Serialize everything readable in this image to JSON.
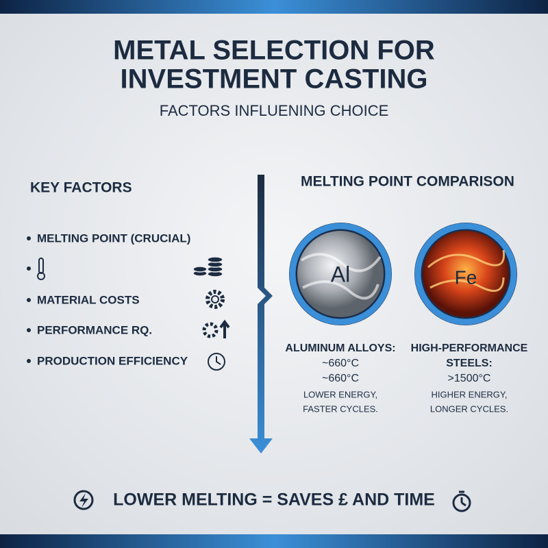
{
  "header": {
    "title_lines": [
      "METAL SELECTION FOR",
      "INVESTMENT CASTING"
    ],
    "subtitle": "FACTORS INFLUENING CHOICE"
  },
  "key_factors": {
    "heading": "KEY FACTORS",
    "items": [
      "MELTING POINT (CRUCIAL)",
      "MATERIAL COSTS",
      "PERFORMANCE RQ.",
      "PRODUCTION EFFICIENCY"
    ]
  },
  "comparison": {
    "heading": "MELTING POINT COMPARISON",
    "metals": [
      {
        "symbol": "Al",
        "lines": [
          "ALUMINUM ALLOYS:",
          "~660°C",
          "~660°C"
        ],
        "notes": [
          "LOWER ENERGY,",
          "FASTER CYCLES."
        ]
      },
      {
        "symbol": "Fe",
        "lines": [
          "HIGH-PERFORMANCE",
          "STEELS:",
          ">1500°C"
        ],
        "notes": [
          "HIGHER ENERGY,",
          "LONGER CYCLES."
        ]
      }
    ]
  },
  "footer": {
    "text": "LOWER MELTING = SAVES £ AND TIME"
  }
}
